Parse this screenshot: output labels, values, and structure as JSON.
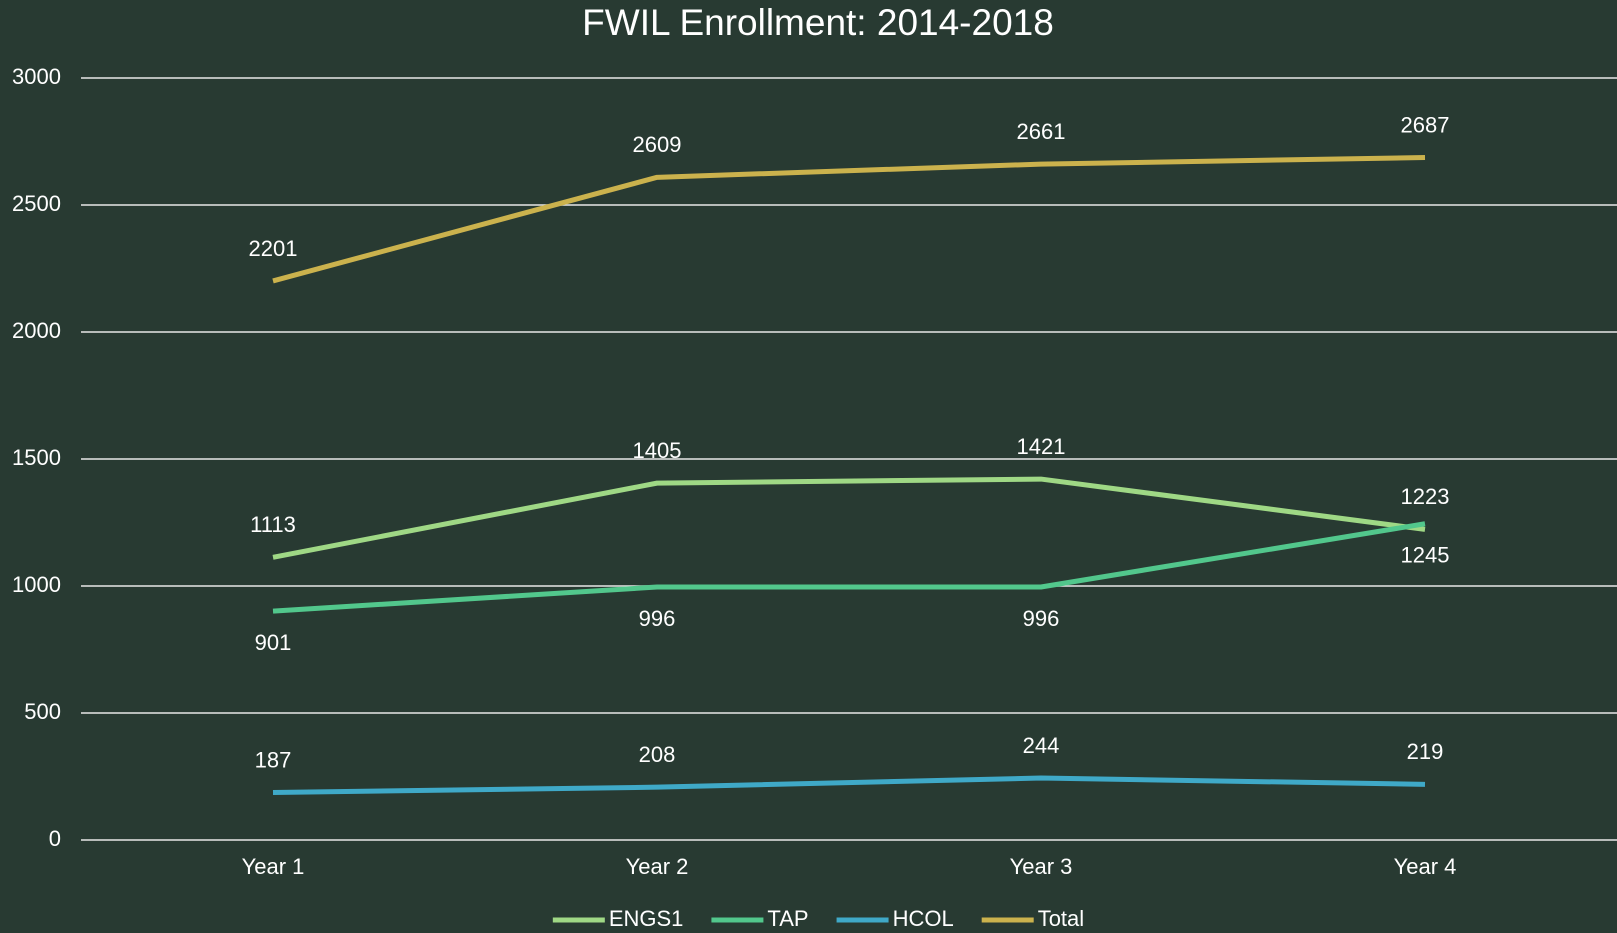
{
  "chart_data": {
    "type": "line",
    "title": "FWIL Enrollment: 2014-2018",
    "categories": [
      "Year 1",
      "Year 2",
      "Year 3",
      "Year 4"
    ],
    "series": [
      {
        "name": "ENGS1",
        "color": "#9fd885",
        "values": [
          1113,
          1405,
          1421,
          1223
        ]
      },
      {
        "name": "TAP",
        "color": "#52c78c",
        "values": [
          901,
          996,
          996,
          1245
        ]
      },
      {
        "name": "HCOL",
        "color": "#3fa9c8",
        "values": [
          187,
          208,
          244,
          219
        ]
      },
      {
        "name": "Total",
        "color": "#cbb24d",
        "values": [
          2201,
          2609,
          2661,
          2687
        ]
      }
    ],
    "ylim": [
      0,
      3000
    ],
    "yticks": [
      0,
      500,
      1000,
      1500,
      2000,
      2500,
      3000
    ],
    "grid": true,
    "legend": "bottom"
  }
}
